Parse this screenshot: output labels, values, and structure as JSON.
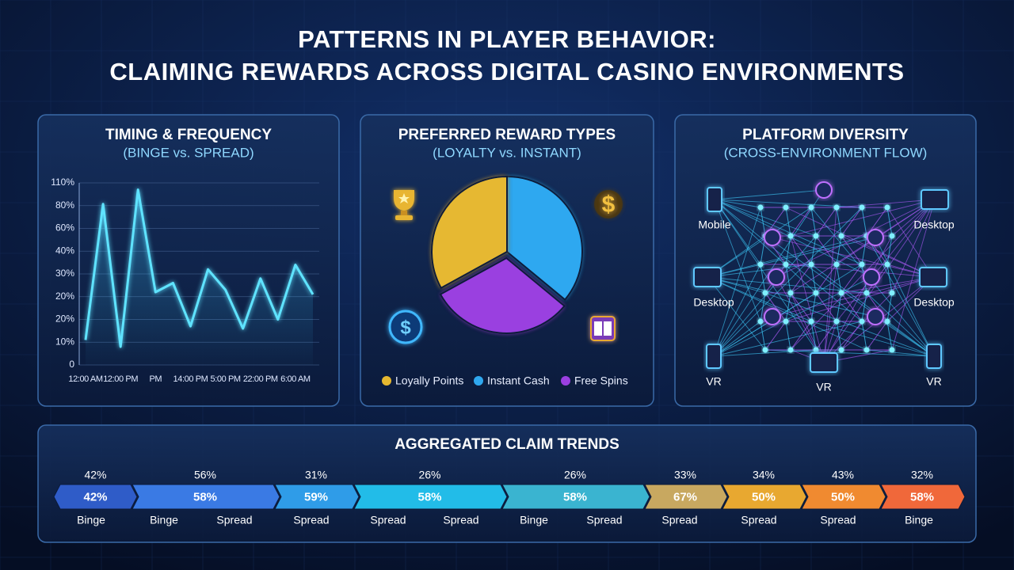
{
  "title": [
    "PATTERNS IN PLAYER BEHAVIOR:",
    "CLAIMING REWARDS ACROSS DIGITAL CASINO ENVIRONMENTS"
  ],
  "chart_data": [
    {
      "type": "line",
      "title": "TIMING & FREQUENCY",
      "subtitle": "(BINGE vs. SPREAD)",
      "categories": [
        "12:00 AM",
        null,
        "12:00 PM",
        null,
        "PM",
        null,
        "14:00 PM",
        null,
        "5:00 PM",
        null,
        "22:00 PM",
        null,
        "6:00 AM",
        null
      ],
      "values": [
        11,
        82,
        8,
        101,
        22,
        26,
        17,
        32,
        23,
        16,
        28,
        20,
        34,
        21
      ],
      "color": "#5fe3ff",
      "ylim": [
        0,
        110
      ],
      "yticks": [
        0,
        {
          "value": 10,
          "label": "10%"
        },
        {
          "value": 20,
          "label": "20%"
        },
        {
          "value": 20,
          "label": "20%"
        },
        {
          "value": 30,
          "label": "30%"
        },
        {
          "value": 40,
          "label": "40%"
        },
        {
          "value": 60,
          "label": "60%"
        },
        {
          "value": 80,
          "label": "80%"
        },
        {
          "value": 110,
          "label": "110%"
        }
      ],
      "grid": true
    },
    {
      "type": "pie",
      "title": "PREFERRED REWARD TYPES",
      "subtitle": "(LOYALTY vs. INSTANT)",
      "categories": [
        "Instant Cash",
        "Free Spins",
        "Loyally Points"
      ],
      "values": [
        36,
        31,
        33
      ],
      "colors": [
        "#2fa8f0",
        "#9a3fe0",
        "#e6b830"
      ],
      "legend_order": [
        2,
        0,
        1
      ]
    },
    {
      "type": "strip",
      "title": "AGGREGATED CLAIM TRENDS",
      "segments": [
        {
          "top": "42%",
          "inner": "42%",
          "color": "#2f5cc8"
        },
        {
          "top": "56%",
          "inner": "58%",
          "color": "#3a7ae4"
        },
        {
          "top": "31%",
          "inner": "59%",
          "color": "#2f9ce8"
        },
        {
          "top": "26%",
          "inner": "58%",
          "color": "#22bce8"
        },
        {
          "top": "26%",
          "inner": "58%",
          "color": "#3ab4d0"
        },
        {
          "top": "33%",
          "inner": "67%",
          "color": "#c8a860"
        },
        {
          "top": "34%",
          "inner": "50%",
          "color": "#e8a830"
        },
        {
          "top": "43%",
          "inner": "50%",
          "color": "#f08a30"
        },
        {
          "top": "32%",
          "inner": "58%",
          "color": "#f0683a"
        }
      ],
      "bottom_labels": [
        "Binge",
        "Binge",
        "Spread",
        "Spread",
        "Spread",
        "Spread",
        "Binge",
        "Spread",
        "Spread",
        "Spread",
        "Spread",
        "Binge"
      ]
    }
  ],
  "diagram": {
    "title": "PLATFORM DIVERSITY",
    "subtitle": "(CROSS-ENVIRONMENT FLOW)",
    "nodes": [
      {
        "label": "Mobile"
      },
      {
        "label": "Desktop"
      },
      {
        "label": "Desktop"
      },
      {
        "label": "Desktop"
      },
      {
        "label": "VR"
      },
      {
        "label": "VR"
      },
      {
        "label": "VR"
      }
    ]
  }
}
